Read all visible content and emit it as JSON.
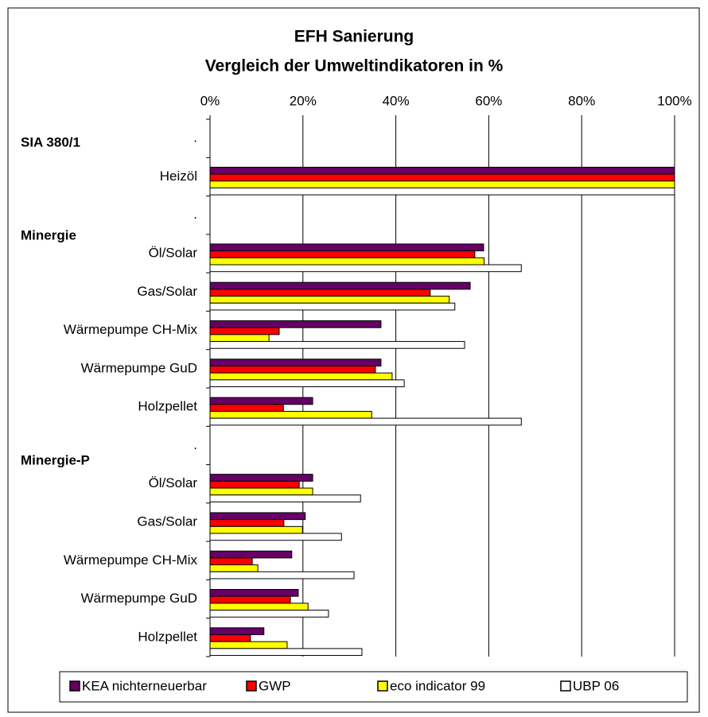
{
  "chart_data": {
    "type": "barh",
    "title": "EFH Sanierung",
    "subtitle": "Vergleich der Umweltindikatoren in %",
    "groups": [
      "SIA 380/1",
      "Minergie",
      "Minergie-P"
    ],
    "categories": [
      ".",
      "Heizöl",
      ".",
      "Öl/Solar",
      "Gas/Solar",
      "Wärmepumpe CH-Mix",
      "Wärmepumpe GuD",
      "Holzpellet",
      ".",
      "Öl/Solar",
      "Gas/Solar",
      "Wärmepumpe CH-Mix",
      "Wärmepumpe GuD",
      "Holzpellet"
    ],
    "series": [
      {
        "name": "KEA nichterneuerbar",
        "color": "#660066",
        "values": [
          null,
          100,
          null,
          58.9,
          56,
          36.8,
          36.8,
          22.1,
          null,
          22.1,
          20.5,
          17.6,
          19,
          11.6
        ]
      },
      {
        "name": "GWP",
        "color": "#ff0000",
        "values": [
          null,
          100,
          null,
          57,
          47.4,
          14.9,
          35.6,
          15.8,
          null,
          19.2,
          15.9,
          9.1,
          17.3,
          8.7
        ]
      },
      {
        "name": "eco indicator 99",
        "color": "#ffff00",
        "values": [
          null,
          100,
          null,
          59,
          51.5,
          12.7,
          39.2,
          34.8,
          null,
          22.1,
          19.9,
          10.3,
          21.1,
          16.6
        ]
      },
      {
        "name": "UBP 06",
        "color": "#ffffff",
        "values": [
          null,
          100,
          null,
          67,
          52.7,
          54.8,
          41.8,
          67,
          null,
          32.4,
          28.3,
          31,
          25.5,
          32.7
        ]
      }
    ],
    "xlim": [
      0,
      100
    ],
    "xticks": [
      {
        "value": 0,
        "label": "0%"
      },
      {
        "value": 20,
        "label": "20%"
      },
      {
        "value": 40,
        "label": "40%"
      },
      {
        "value": 60,
        "label": "60%"
      },
      {
        "value": 80,
        "label": "80%"
      },
      {
        "value": 100,
        "label": "100%"
      }
    ],
    "grid": true,
    "legend": "bottom"
  }
}
